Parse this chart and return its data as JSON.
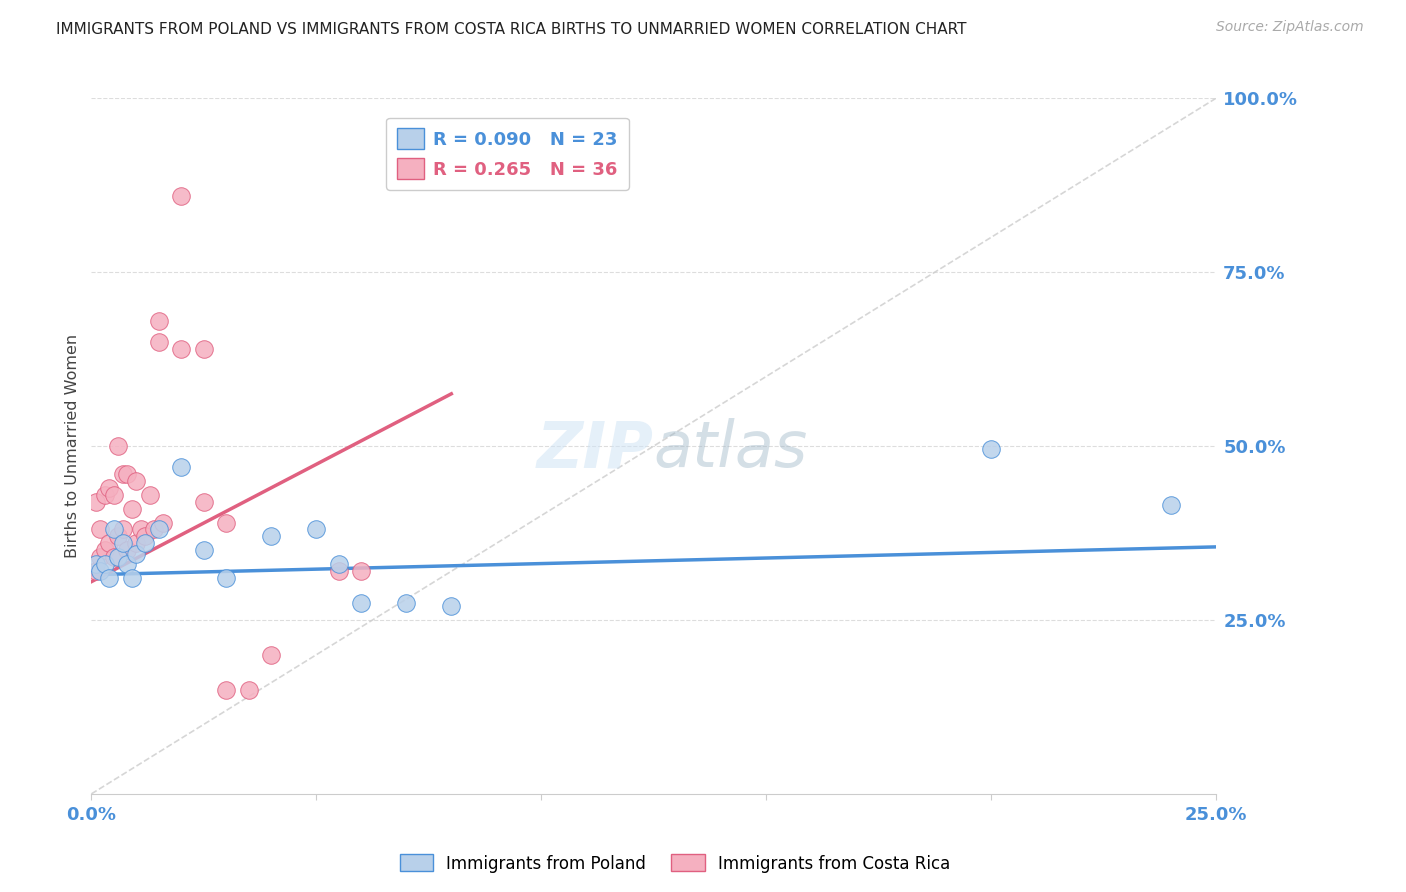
{
  "title": "IMMIGRANTS FROM POLAND VS IMMIGRANTS FROM COSTA RICA BIRTHS TO UNMARRIED WOMEN CORRELATION CHART",
  "source": "Source: ZipAtlas.com",
  "ylabel": "Births to Unmarried Women",
  "legend_poland_text": "R = 0.090   N = 23",
  "legend_cr_text": "R = 0.265   N = 36",
  "color_poland_fill": "#b8d0ea",
  "color_poland_edge": "#4a90d9",
  "color_cr_fill": "#f5b0c0",
  "color_cr_edge": "#e06080",
  "color_diag": "#cccccc",
  "color_poland_trendline": "#4a90d9",
  "color_cr_trendline": "#e06080",
  "color_axis_text": "#4a90d9",
  "color_grid": "#dddddd",
  "xmin": 0.0,
  "xmax": 0.25,
  "ymin": 0.0,
  "ymax": 1.0,
  "poland_x": [
    0.001,
    0.002,
    0.003,
    0.004,
    0.005,
    0.006,
    0.007,
    0.008,
    0.009,
    0.01,
    0.012,
    0.015,
    0.02,
    0.025,
    0.03,
    0.04,
    0.05,
    0.055,
    0.06,
    0.07,
    0.08,
    0.2,
    0.24
  ],
  "poland_y": [
    0.33,
    0.32,
    0.33,
    0.31,
    0.38,
    0.34,
    0.36,
    0.33,
    0.31,
    0.345,
    0.36,
    0.38,
    0.47,
    0.35,
    0.31,
    0.37,
    0.38,
    0.33,
    0.275,
    0.275,
    0.27,
    0.495,
    0.415
  ],
  "costa_rica_x": [
    0.001,
    0.001,
    0.002,
    0.002,
    0.003,
    0.003,
    0.004,
    0.004,
    0.005,
    0.005,
    0.006,
    0.006,
    0.007,
    0.007,
    0.008,
    0.008,
    0.009,
    0.01,
    0.01,
    0.011,
    0.012,
    0.013,
    0.014,
    0.015,
    0.015,
    0.016,
    0.02,
    0.025,
    0.025,
    0.03,
    0.03,
    0.035,
    0.04,
    0.055,
    0.06,
    0.02
  ],
  "costa_rica_y": [
    0.32,
    0.42,
    0.34,
    0.38,
    0.35,
    0.43,
    0.36,
    0.44,
    0.34,
    0.43,
    0.37,
    0.5,
    0.38,
    0.46,
    0.35,
    0.46,
    0.41,
    0.36,
    0.45,
    0.38,
    0.37,
    0.43,
    0.38,
    0.65,
    0.68,
    0.39,
    0.64,
    0.64,
    0.42,
    0.39,
    0.15,
    0.15,
    0.2,
    0.32,
    0.32,
    0.86
  ],
  "poland_trend_x": [
    0.0,
    0.25
  ],
  "poland_trend_y": [
    0.315,
    0.355
  ],
  "cr_trend_x": [
    0.0,
    0.08
  ],
  "cr_trend_y": [
    0.305,
    0.575
  ]
}
